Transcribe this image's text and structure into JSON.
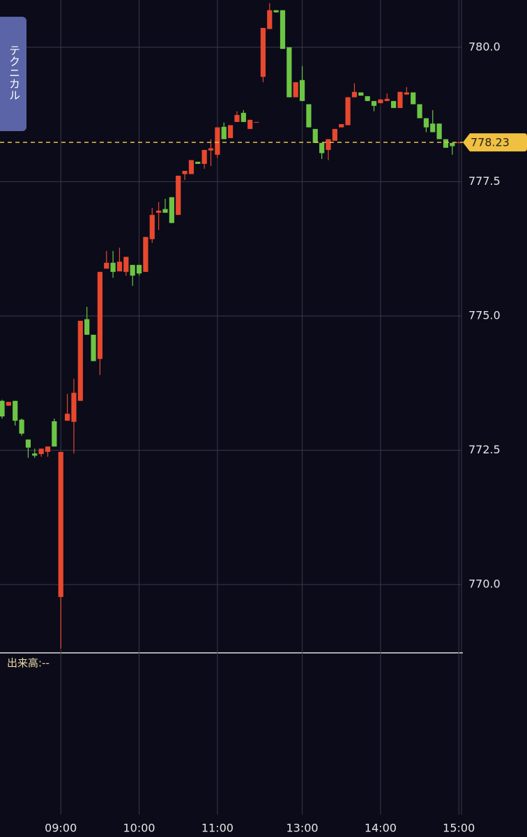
{
  "chart_data": {
    "type": "candlestick",
    "categories": [
      null,
      null,
      null,
      null,
      null,
      null,
      null,
      null,
      null,
      "09:00",
      null,
      null,
      null,
      null,
      null,
      null,
      null,
      null,
      null,
      null,
      null,
      "10:00",
      null,
      null,
      null,
      null,
      null,
      null,
      null,
      null,
      null,
      null,
      null,
      "11:00",
      null,
      null,
      null,
      null,
      null,
      null,
      null,
      null,
      null,
      null,
      null,
      null,
      "13:00",
      null,
      null,
      null,
      null,
      null,
      null,
      null,
      null,
      null,
      null,
      null,
      "14:00",
      null,
      null,
      null,
      null,
      null,
      null,
      null,
      null,
      null,
      null,
      null,
      "15:00"
    ],
    "open": [
      773.42,
      773.33,
      773.42,
      773.07,
      772.7,
      772.44,
      772.43,
      772.47,
      773.04,
      769.77,
      773.05,
      773.03,
      773.42,
      774.94,
      774.65,
      774.2,
      775.88,
      775.99,
      775.83,
      775.82,
      775.95,
      775.95,
      775.82,
      776.43,
      776.92,
      776.99,
      777.21,
      776.88,
      777.64,
      777.64,
      777.87,
      777.83,
      778.08,
      778.0,
      778.52,
      778.31,
      778.61,
      778.78,
      778.48,
      778.6,
      779.45,
      780.34,
      780.69,
      780.69,
      780.0,
      779.07,
      779.39,
      778.94,
      778.48,
      778.22,
      778.09,
      778.26,
      778.51,
      778.55,
      779.07,
      779.16,
      779.09,
      779.0,
      778.96,
      779.0,
      779.0,
      778.87,
      779.12,
      779.16,
      778.94,
      778.68,
      778.58,
      778.58,
      778.29,
      778.22,
      778.22
    ],
    "high": [
      773.44,
      773.4,
      773.42,
      773.09,
      772.7,
      772.53,
      772.53,
      772.57,
      773.09,
      772.47,
      773.55,
      773.83,
      774.91,
      775.17,
      774.65,
      775.82,
      776.21,
      776.21,
      776.27,
      776.1,
      775.95,
      775.95,
      776.47,
      777.01,
      777.12,
      777.18,
      777.21,
      777.61,
      777.7,
      777.9,
      777.87,
      778.09,
      778.29,
      778.51,
      778.6,
      778.55,
      778.81,
      778.83,
      778.65,
      778.61,
      780.36,
      780.82,
      780.69,
      780.69,
      780.0,
      779.35,
      779.65,
      778.94,
      778.48,
      778.22,
      778.29,
      778.48,
      778.57,
      779.07,
      779.33,
      779.16,
      779.09,
      779.0,
      779.03,
      779.14,
      779.0,
      779.17,
      779.26,
      779.16,
      778.94,
      778.68,
      778.83,
      778.58,
      778.29,
      778.22,
      778.25
    ],
    "low": [
      773.09,
      773.33,
      772.96,
      772.77,
      772.36,
      772.36,
      772.38,
      772.38,
      772.57,
      768.81,
      773.05,
      772.44,
      773.42,
      774.65,
      774.16,
      773.9,
      775.88,
      775.71,
      775.83,
      775.75,
      775.56,
      775.75,
      775.82,
      776.36,
      776.6,
      776.92,
      776.73,
      776.88,
      777.53,
      777.64,
      777.83,
      777.74,
      777.79,
      777.94,
      778.29,
      778.31,
      778.61,
      778.61,
      778.48,
      778.6,
      779.35,
      780.34,
      780.65,
      779.97,
      779.07,
      779.07,
      779.0,
      778.51,
      778.22,
      777.92,
      777.9,
      778.26,
      778.51,
      778.55,
      779.07,
      779.1,
      779.0,
      778.81,
      778.96,
      779.0,
      778.87,
      778.87,
      779.12,
      778.94,
      778.68,
      778.42,
      778.42,
      778.29,
      778.13,
      778.0,
      778.22
    ],
    "close": [
      773.13,
      773.4,
      773.05,
      772.81,
      772.55,
      772.4,
      772.53,
      772.57,
      772.57,
      772.47,
      773.18,
      773.57,
      774.91,
      774.65,
      774.16,
      775.82,
      775.99,
      775.82,
      776.01,
      776.1,
      775.75,
      775.79,
      776.47,
      776.88,
      776.96,
      776.92,
      776.73,
      777.61,
      777.7,
      777.9,
      777.83,
      778.09,
      778.12,
      778.51,
      778.29,
      778.55,
      778.74,
      778.61,
      778.65,
      778.61,
      780.36,
      780.69,
      780.65,
      779.97,
      779.07,
      779.35,
      779.0,
      778.51,
      778.22,
      778.03,
      778.29,
      778.48,
      778.57,
      779.07,
      779.17,
      779.1,
      779.0,
      778.91,
      779.03,
      779.04,
      778.87,
      779.17,
      779.16,
      778.94,
      778.68,
      778.51,
      778.42,
      778.29,
      778.13,
      778.16,
      778.23
    ],
    "up_color": "#e8482e",
    "down_color": "#6cc644",
    "ylim": [
      768.73,
      780.88
    ],
    "yticks": [
      {
        "value": 770,
        "label": "770.0"
      },
      772.5,
      {
        "value": 775,
        "label": "775.0"
      },
      777.5,
      {
        "value": 780,
        "label": "780.0"
      }
    ],
    "grid": true,
    "last_price": 778.23,
    "volume_label": "出来高:--",
    "button": "テクニカル"
  }
}
